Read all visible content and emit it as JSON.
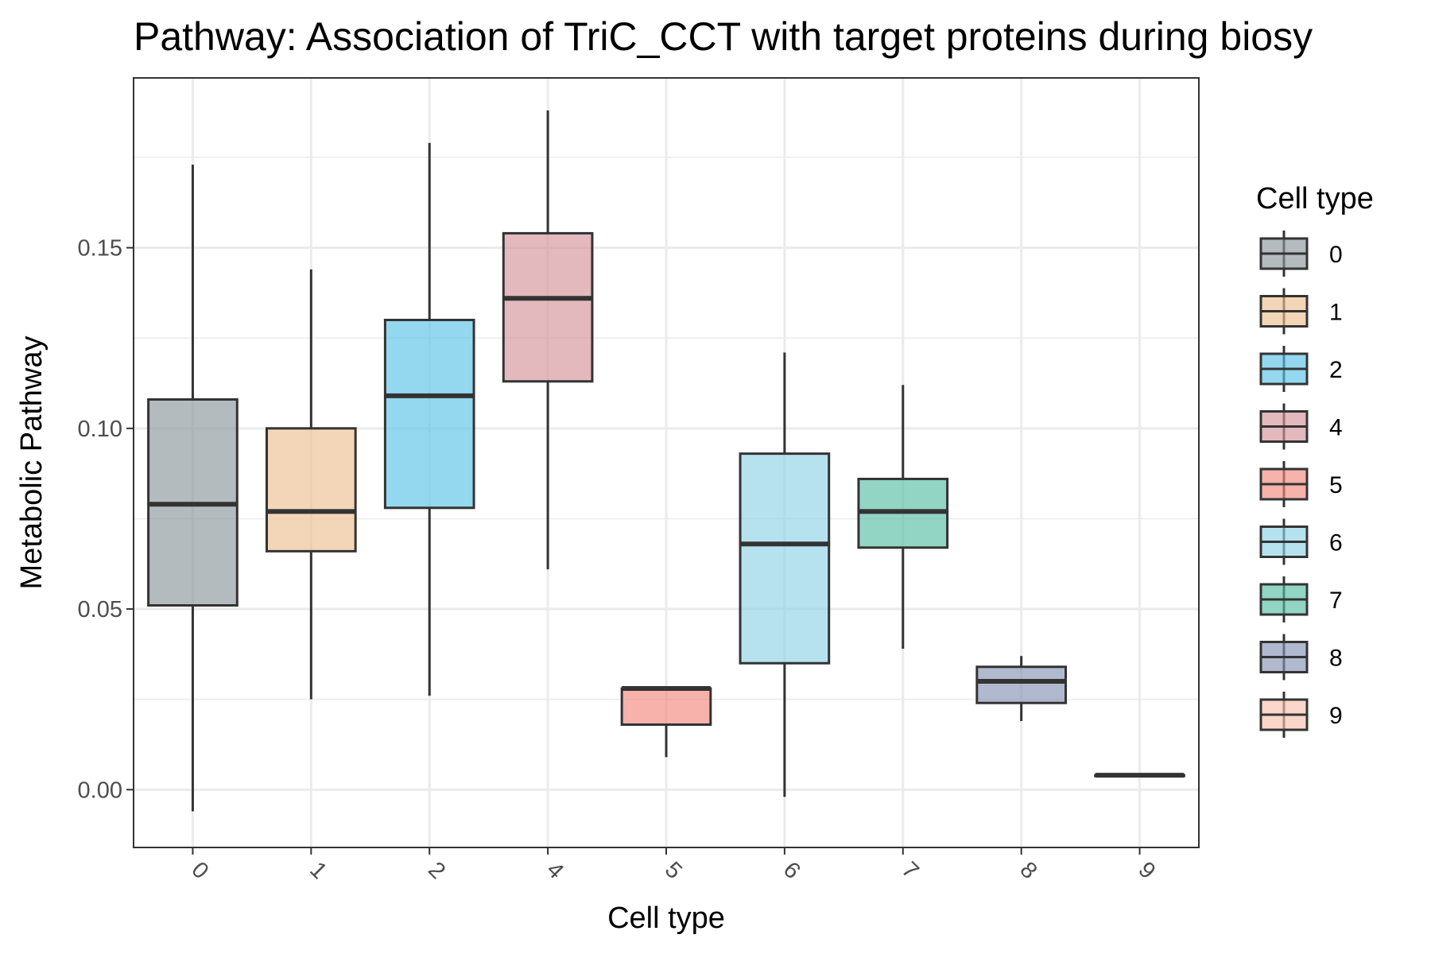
{
  "chart_data": {
    "type": "box",
    "title": "Pathway: Association of TriC_CCT with target proteins during biosy",
    "xlabel": "Cell type",
    "ylabel": "Metabolic Pathway",
    "ylim": [
      -0.016,
      0.197
    ],
    "yticks": [
      0.0,
      0.05,
      0.1,
      0.15
    ],
    "ytick_labels": [
      "0.00",
      "0.05",
      "0.10",
      "0.15"
    ],
    "grid": true,
    "legend": {
      "title": "Cell type",
      "position": "right"
    },
    "categories": [
      "0",
      "1",
      "2",
      "4",
      "5",
      "6",
      "7",
      "8",
      "9"
    ],
    "boxes": [
      {
        "category": "0",
        "whisker_low": -0.006,
        "q1": 0.051,
        "median": 0.079,
        "q3": 0.108,
        "whisker_high": 0.173,
        "color": "#8C979C"
      },
      {
        "category": "1",
        "whisker_low": 0.025,
        "q1": 0.066,
        "median": 0.077,
        "q3": 0.1,
        "whisker_high": 0.144,
        "color": "#EDC092"
      },
      {
        "category": "2",
        "whisker_low": 0.026,
        "q1": 0.078,
        "median": 0.109,
        "q3": 0.13,
        "whisker_high": 0.179,
        "color": "#5BC3E8"
      },
      {
        "category": "4",
        "whisker_low": 0.061,
        "q1": 0.113,
        "median": 0.136,
        "q3": 0.154,
        "whisker_high": 0.188,
        "color": "#D49499"
      },
      {
        "category": "5",
        "whisker_low": 0.009,
        "q1": 0.018,
        "median": 0.028,
        "q3": 0.028,
        "whisker_high": 0.028,
        "color": "#F2897E"
      },
      {
        "category": "6",
        "whisker_low": -0.002,
        "q1": 0.035,
        "median": 0.068,
        "q3": 0.093,
        "whisker_high": 0.121,
        "color": "#8FD3E6"
      },
      {
        "category": "7",
        "whisker_low": 0.039,
        "q1": 0.067,
        "median": 0.077,
        "q3": 0.086,
        "whisker_high": 0.112,
        "color": "#57BFA6"
      },
      {
        "category": "8",
        "whisker_low": 0.019,
        "q1": 0.024,
        "median": 0.03,
        "q3": 0.034,
        "whisker_high": 0.037,
        "color": "#8793B5"
      },
      {
        "category": "9",
        "whisker_low": 0.004,
        "q1": 0.004,
        "median": 0.004,
        "q3": 0.004,
        "whisker_high": 0.004,
        "color": "#F7C2AE"
      }
    ]
  }
}
